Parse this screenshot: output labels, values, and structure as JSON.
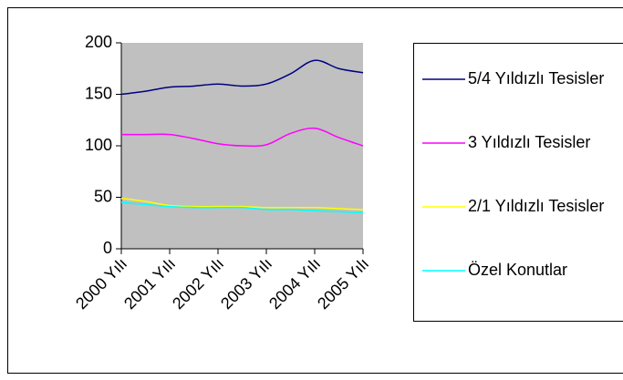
{
  "chart_data": {
    "type": "line",
    "categories": [
      "2000 Yılı",
      null,
      "2001 Yılı",
      null,
      "2002 Yılı",
      null,
      "2003 Yılı",
      null,
      "2004 Yılı",
      null,
      "2005 Yılı"
    ],
    "series": [
      {
        "name": "5/4 Yıldızlı Tesisler",
        "color": "#000080",
        "values": [
          150,
          153,
          157,
          158,
          160,
          158,
          160,
          170,
          183,
          175,
          171
        ]
      },
      {
        "name": "3 Yıldızlı Tesisler",
        "color": "#ff00ff",
        "values": [
          111,
          111,
          111,
          107,
          102,
          100,
          101,
          112,
          117,
          108,
          100
        ]
      },
      {
        "name": "2/1 Yıldızlı Tesisler",
        "color": "#ffff00",
        "values": [
          49,
          46,
          42,
          41,
          41,
          41,
          40,
          40,
          40,
          39,
          38
        ]
      },
      {
        "name": "Özel Konutlar",
        "color": "#00ffff",
        "values": [
          45,
          43,
          41,
          40,
          40,
          40,
          38,
          38,
          37,
          36,
          35
        ]
      }
    ],
    "ylim": [
      0,
      200
    ],
    "yticks": [
      0,
      50,
      100,
      150,
      200
    ],
    "plot_background": "#c0c0c0",
    "legend": "right"
  }
}
